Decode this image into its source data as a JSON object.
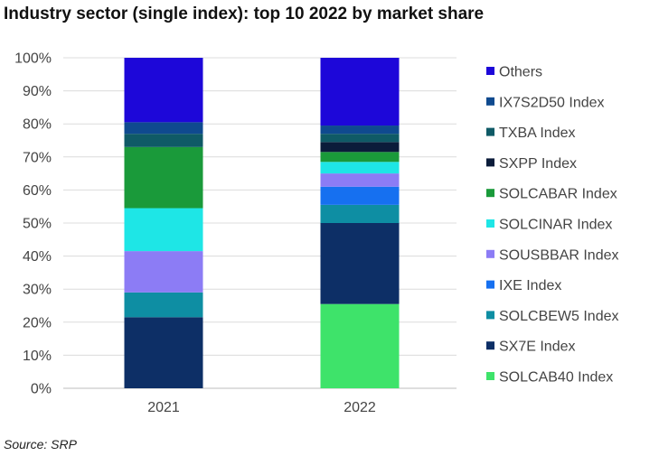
{
  "title": "Industry sector (single index): top 10 2022 by market share",
  "source": "Source: SRP",
  "chart_data": {
    "type": "bar",
    "stacked": true,
    "percent": true,
    "categories": [
      "2021",
      "2022"
    ],
    "ylim": [
      0,
      100
    ],
    "yticks": [
      0,
      10,
      20,
      30,
      40,
      50,
      60,
      70,
      80,
      90,
      100
    ],
    "ytick_labels": [
      "0%",
      "10%",
      "20%",
      "30%",
      "40%",
      "50%",
      "60%",
      "70%",
      "80%",
      "90%",
      "100%"
    ],
    "grid": true,
    "legend_position": "right",
    "series": [
      {
        "name": "SOLCAB40 Index",
        "color": "#3ee36a",
        "values": [
          0,
          25.5
        ]
      },
      {
        "name": "SX7E Index",
        "color": "#0d2f66",
        "values": [
          21.5,
          24.5
        ]
      },
      {
        "name": "SOLCBEW5 Index",
        "color": "#0e8ea3",
        "values": [
          7.5,
          5.5
        ]
      },
      {
        "name": "IXE Index",
        "color": "#1670f0",
        "values": [
          0,
          5.5
        ]
      },
      {
        "name": "SOUSBBAR Index",
        "color": "#8c7cf5",
        "values": [
          12.5,
          4
        ]
      },
      {
        "name": "SOLCINAR Index",
        "color": "#1ee6e6",
        "values": [
          13,
          3.5
        ]
      },
      {
        "name": "SOLCABAR Index",
        "color": "#1a9a3a",
        "values": [
          18.5,
          3
        ]
      },
      {
        "name": "SXPP Index",
        "color": "#0b1c3a",
        "values": [
          0,
          3
        ]
      },
      {
        "name": "TXBA Index",
        "color": "#0f5a66",
        "values": [
          4,
          2.5
        ]
      },
      {
        "name": "IX7S2D50 Index",
        "color": "#0f4a8f",
        "values": [
          3.5,
          2.5
        ]
      },
      {
        "name": "Others",
        "color": "#1d07d9",
        "values": [
          19.5,
          20.5
        ]
      }
    ]
  }
}
